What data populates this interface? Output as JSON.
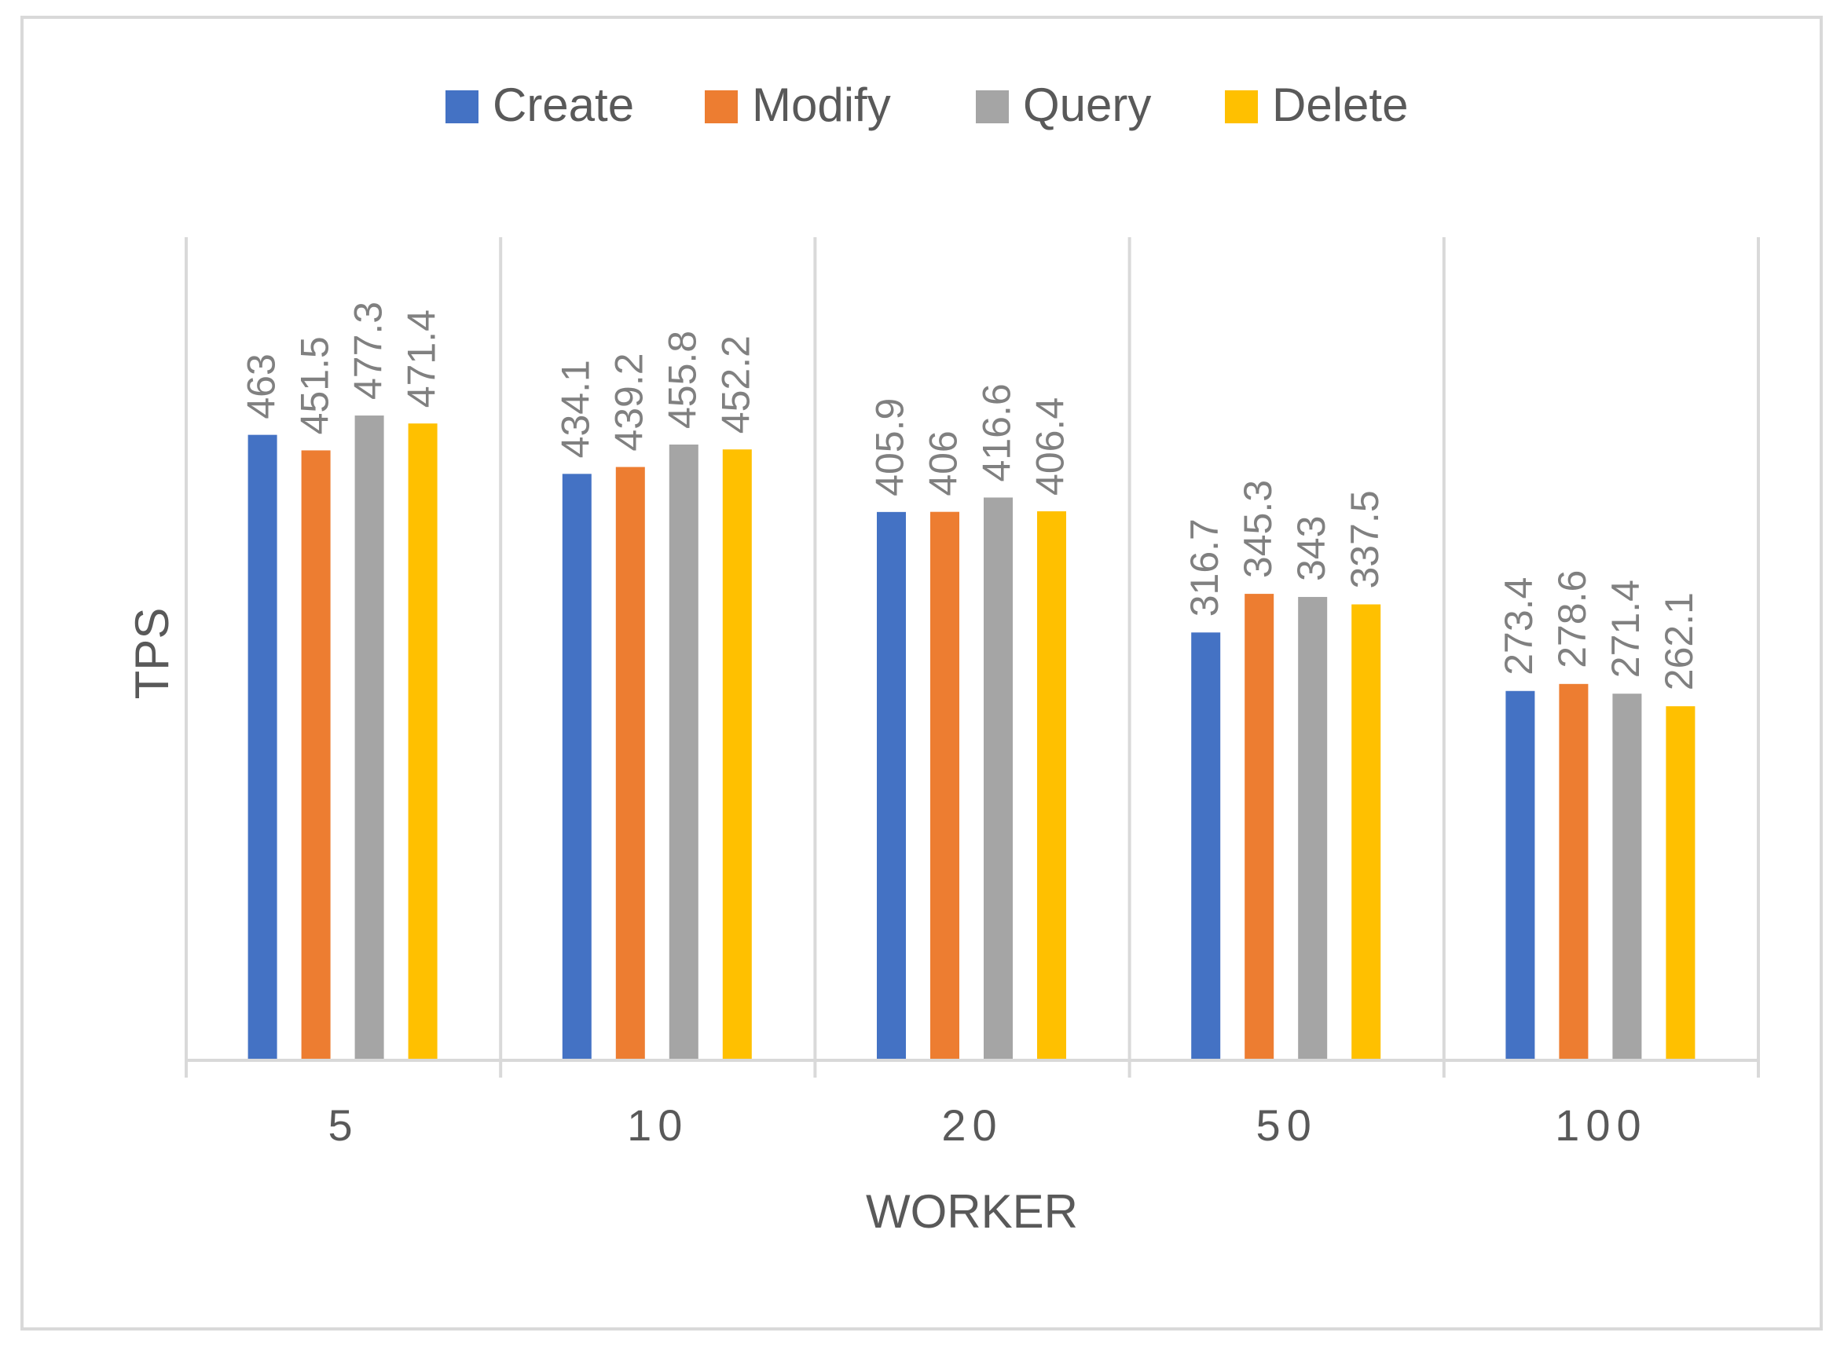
{
  "chart_data": {
    "type": "bar",
    "title": "",
    "xlabel": "WORKER",
    "ylabel": "TPS",
    "categories": [
      "5",
      "10",
      "20",
      "50",
      "100"
    ],
    "series": [
      {
        "name": "Create",
        "color": "#4472C4",
        "values": [
          463,
          434.1,
          405.9,
          316.7,
          273.4
        ]
      },
      {
        "name": "Modify",
        "color": "#ED7D31",
        "values": [
          451.5,
          439.2,
          406,
          345.3,
          278.6
        ]
      },
      {
        "name": "Query",
        "color": "#A5A5A5",
        "values": [
          477.3,
          455.8,
          416.6,
          343,
          271.4
        ]
      },
      {
        "name": "Delete",
        "color": "#FFC000",
        "values": [
          471.4,
          452.2,
          406.4,
          337.5,
          262.1
        ]
      }
    ],
    "data_labels": [
      [
        "463",
        "451.5",
        "477.3",
        "471.4"
      ],
      [
        "434.1",
        "439.2",
        "455.8",
        "452.2"
      ],
      [
        "405.9",
        "406",
        "416.6",
        "406.4"
      ],
      [
        "316.7",
        "345.3",
        "343",
        "337.5"
      ],
      [
        "273.4",
        "278.6",
        "271.4",
        "262.1"
      ]
    ],
    "ylim": [
      0,
      600
    ],
    "y_axis_visible": false,
    "grid": "vertical category separators",
    "legend": "top-center",
    "colors": {
      "axis": "#D9D9D9",
      "text": "#595959",
      "data_label": "#808080",
      "frame": "#D9D9D9"
    }
  }
}
